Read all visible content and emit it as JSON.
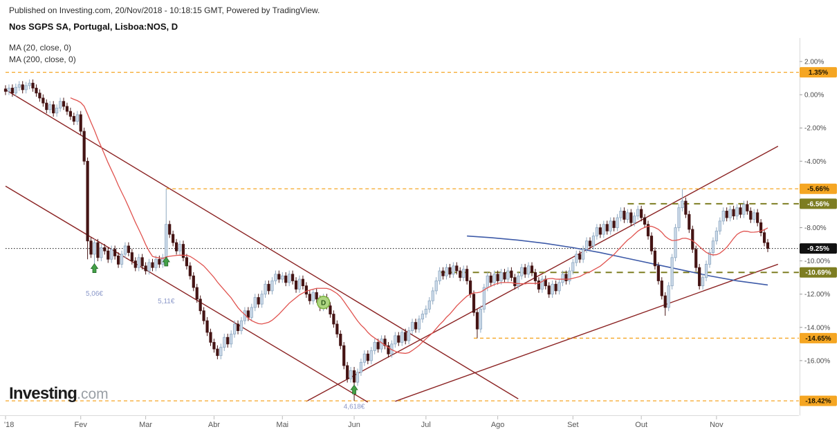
{
  "header": {
    "published": "Published on Investing.com, 20/Nov/2018 - 10:18:15 GMT, Powered by TradingView.",
    "title": "Nos SGPS SA, Portugal, Lisboa:NOS, D"
  },
  "legend": {
    "ma20": "MA (20, close, 0)",
    "ma200": "MA (200, close, 0)"
  },
  "logo": {
    "main": "Investing",
    "suffix": ".com"
  },
  "colors": {
    "up_candle": "#CBD9E8",
    "up_border": "#8FA9C2",
    "down_candle": "#451414",
    "ma20": "#E0524E",
    "ma200": "#3D5AA8",
    "trend": "#8B2323",
    "level_yellow": "#F5A623",
    "level_olive": "#7D7D21",
    "current": "#111111",
    "marker_green": "#43A047"
  },
  "chart_data": {
    "type": "candlestick",
    "title": "Nos SGPS SA, Portugal, Lisboa:NOS, D",
    "symbol": "Lisboa:NOS",
    "timeframe": "D",
    "y_unit": "percent_change",
    "ylim": [
      3.2,
      -19.3
    ],
    "grid": false,
    "legend_position": "top-left",
    "default_wick": 0.22,
    "closes": [
      0.2,
      0.4,
      0.1,
      0.45,
      0.6,
      0.3,
      0.55,
      0.7,
      0.4,
      0.1,
      -0.2,
      -0.5,
      -0.9,
      -0.6,
      -1.1,
      -0.8,
      -0.4,
      -0.7,
      -1.0,
      -1.3,
      -1.6,
      -1.2,
      -2.2,
      -4.0,
      -8.8,
      -9.6,
      -8.9,
      -9.8,
      -9.2,
      -9.4,
      -9.9,
      -9.3,
      -9.7,
      -10.2,
      -9.6,
      -9.1,
      -9.5,
      -10.0,
      -10.4,
      -9.8,
      -10.3,
      -10.6,
      -10.1,
      -10.4,
      -9.9,
      -10.2,
      -9.8,
      -7.8,
      -8.4,
      -8.9,
      -9.4,
      -9.0,
      -9.8,
      -10.3,
      -10.9,
      -11.6,
      -12.3,
      -13.0,
      -13.6,
      -14.3,
      -14.9,
      -15.3,
      -15.7,
      -15.2,
      -14.6,
      -15.0,
      -14.4,
      -13.8,
      -14.2,
      -13.6,
      -13.0,
      -13.4,
      -12.8,
      -12.2,
      -12.6,
      -12.0,
      -11.4,
      -11.8,
      -11.2,
      -10.8,
      -11.1,
      -10.9,
      -11.3,
      -10.8,
      -11.2,
      -11.7,
      -11.1,
      -11.5,
      -12.0,
      -12.4,
      -11.9,
      -12.3,
      -12.8,
      -12.2,
      -12.7,
      -13.2,
      -13.8,
      -14.4,
      -15.1,
      -16.3,
      -17.1,
      -16.6,
      -17.3,
      -16.7,
      -16.1,
      -15.6,
      -16.0,
      -15.4,
      -14.9,
      -15.3,
      -14.7,
      -15.1,
      -15.6,
      -15.0,
      -14.5,
      -14.9,
      -14.3,
      -14.8,
      -14.2,
      -13.7,
      -14.1,
      -13.5,
      -13.2,
      -12.9,
      -12.4,
      -11.8,
      -11.2,
      -10.6,
      -10.9,
      -10.4,
      -10.8,
      -10.3,
      -10.6,
      -11.0,
      -10.5,
      -11.2,
      -12.0,
      -13.1,
      -14.1,
      -12.9,
      -11.6,
      -10.9,
      -11.3,
      -10.8,
      -11.2,
      -10.7,
      -11.1,
      -10.6,
      -11.0,
      -11.5,
      -10.9,
      -10.4,
      -10.8,
      -10.3,
      -10.7,
      -11.2,
      -11.7,
      -11.1,
      -11.5,
      -12.0,
      -11.4,
      -11.8,
      -11.3,
      -10.8,
      -11.2,
      -10.6,
      -10.1,
      -9.6,
      -9.9,
      -9.3,
      -8.8,
      -9.1,
      -8.5,
      -8.0,
      -8.4,
      -7.8,
      -8.2,
      -7.6,
      -8.0,
      -7.4,
      -7.0,
      -7.5,
      -7.1,
      -7.7,
      -7.3,
      -6.9,
      -7.4,
      -7.8,
      -8.5,
      -9.4,
      -10.3,
      -11.2,
      -12.1,
      -12.8,
      -11.5,
      -9.8,
      -8.0,
      -6.8,
      -6.4,
      -7.2,
      -8.1,
      -9.3,
      -10.4,
      -11.5,
      -11.0,
      -10.2,
      -9.5,
      -8.8,
      -8.2,
      -7.6,
      -7.0,
      -7.4,
      -6.9,
      -7.3,
      -6.8,
      -7.2,
      -6.6,
      -7.0,
      -7.5,
      -7.1,
      -7.7,
      -8.3,
      -8.9,
      -9.25
    ],
    "wick_overrides": {
      "24": {
        "l": -9.9
      },
      "26": {
        "l": -10.62
      },
      "47": {
        "h": -5.66,
        "l": -10.3
      },
      "102": {
        "l": -18.42
      },
      "138": {
        "l": -14.65
      },
      "193": {
        "l": -13.3
      },
      "198": {
        "h": -5.66
      }
    },
    "ma200_points": [
      [
        135,
        -8.5
      ],
      [
        142,
        -8.6
      ],
      [
        150,
        -8.75
      ],
      [
        158,
        -8.95
      ],
      [
        166,
        -9.2
      ],
      [
        174,
        -9.5
      ],
      [
        182,
        -9.85
      ],
      [
        190,
        -10.2
      ],
      [
        198,
        -10.55
      ],
      [
        206,
        -10.9
      ],
      [
        214,
        -11.2
      ],
      [
        223,
        -11.45
      ]
    ],
    "trend_lines": [
      {
        "from": [
          0,
          0.3
        ],
        "to": [
          150,
          -18.3
        ]
      },
      {
        "from": [
          0,
          -5.5
        ],
        "to": [
          106,
          -18.5
        ]
      },
      {
        "from": [
          88,
          -18.45
        ],
        "to": [
          226,
          -3.1
        ]
      },
      {
        "from": [
          114,
          -18.45
        ],
        "to": [
          226,
          -10.2
        ]
      }
    ],
    "levels": [
      {
        "pct": 1.35,
        "from_day": 0,
        "style": "yellow"
      },
      {
        "pct": -5.66,
        "from_day": 47,
        "style": "yellow"
      },
      {
        "pct": -6.56,
        "from_day": 182,
        "style": "olive"
      },
      {
        "pct": -10.69,
        "from_day": 127,
        "style": "olive"
      },
      {
        "pct": -14.65,
        "from_day": 137,
        "style": "yellow"
      },
      {
        "pct": -18.42,
        "from_day": 0,
        "style": "yellow"
      },
      {
        "pct": -9.25,
        "from_day": 0,
        "style": "current"
      }
    ],
    "current_price": {
      "value": -9.25,
      "label": "-9.25%"
    },
    "markers": [
      {
        "type": "arrow-up",
        "day": 26,
        "price_pct": -10.0,
        "label": "5,06€",
        "label_pct": -12.1
      },
      {
        "type": "arrow-up",
        "day": 47,
        "price_pct": -9.6,
        "label": "5,11€",
        "label_pct": -12.55
      },
      {
        "type": "arrow-up",
        "day": 102,
        "price_pct": -17.3,
        "label": "4,618€",
        "label_pct": -18.9
      },
      {
        "type": "dividend",
        "day": 93,
        "price_pct": -12.5,
        "label": "D"
      }
    ],
    "y_axis": {
      "ticks": [
        {
          "pct": 2,
          "label": "2.00%"
        },
        {
          "pct": 0,
          "label": "0.00%"
        },
        {
          "pct": -2,
          "label": "-2.00%"
        },
        {
          "pct": -4,
          "label": "-4.00%"
        },
        {
          "pct": -8,
          "label": "-8.00%"
        },
        {
          "pct": -10,
          "label": "-10.00%"
        },
        {
          "pct": -12,
          "label": "-12.00%"
        },
        {
          "pct": -14,
          "label": "-14.00%"
        },
        {
          "pct": -16,
          "label": "-16.00%"
        }
      ],
      "highlights": [
        {
          "pct": 1.35,
          "label": "1.35%",
          "style": "yellow"
        },
        {
          "pct": -5.66,
          "label": "-5.66%",
          "style": "yellow"
        },
        {
          "pct": -6.56,
          "label": "-6.56%",
          "style": "olive"
        },
        {
          "pct": -9.25,
          "label": "-9.25%",
          "style": "black"
        },
        {
          "pct": -10.69,
          "label": "-10.69%",
          "style": "olive"
        },
        {
          "pct": -14.65,
          "label": "-14.65%",
          "style": "yellow"
        },
        {
          "pct": -18.42,
          "label": "-18.42%",
          "style": "yellow"
        }
      ]
    },
    "x_ticks": [
      {
        "day": 0,
        "label": "'18"
      },
      {
        "day": 22,
        "label": "Fev"
      },
      {
        "day": 41,
        "label": "Mar"
      },
      {
        "day": 61,
        "label": "Abr"
      },
      {
        "day": 81,
        "label": "Mai"
      },
      {
        "day": 102,
        "label": "Jun"
      },
      {
        "day": 123,
        "label": "Jul"
      },
      {
        "day": 144,
        "label": "Ago"
      },
      {
        "day": 166,
        "label": "Set"
      },
      {
        "day": 186,
        "label": "Out"
      },
      {
        "day": 208,
        "label": "Nov"
      }
    ]
  }
}
